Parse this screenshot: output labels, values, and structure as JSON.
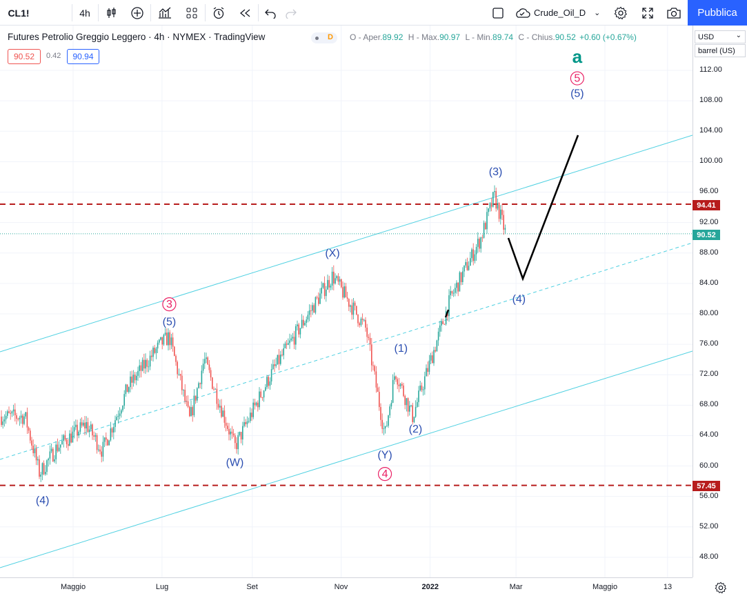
{
  "toolbar": {
    "symbol": "CL1!",
    "interval": "4h",
    "layout_name": "Crude_Oil_D",
    "publish_label": "Pubblica"
  },
  "legend": {
    "title": "Futures Petrolio Greggio Leggero · 4h · NYMEX · TradingView",
    "badge": "D",
    "open_label": "O - Aper.",
    "open": "89.92",
    "high_label": "H - Max.",
    "high": "90.97",
    "low_label": "L - Min.",
    "low": "89.74",
    "close_label": "C - Chius.",
    "close": "90.52",
    "change": "+0.60 (+0.67%)",
    "bid": "90.52",
    "spread": "0.42",
    "ask": "90.94"
  },
  "scale": {
    "currency": "USD",
    "unit": "barrel (US)",
    "ticks": [
      "112.00",
      "108.00",
      "104.00",
      "100.00",
      "96.00",
      "92.00",
      "88.00",
      "84.00",
      "80.00",
      "76.00",
      "72.00",
      "68.00",
      "64.00",
      "60.00",
      "56.00",
      "52.00",
      "48.00"
    ],
    "tag_resistance": "94.41",
    "tag_last": "90.52",
    "tag_support": "57.45"
  },
  "time_axis": {
    "ticks": [
      "Maggio",
      "Lug",
      "Set",
      "Nov",
      "2022",
      "Mar",
      "Maggio",
      "13"
    ]
  },
  "colors": {
    "up": "#26a69a",
    "down": "#ef5350",
    "channel": "#4dd0e1",
    "level": "#b71c1c",
    "wave_blue": "#2a4db0",
    "wave_pink": "#e91e63",
    "wave_green": "#009688"
  },
  "chart_data": {
    "type": "candlestick",
    "title": "Futures Petrolio Greggio Leggero · 4h · NYMEX",
    "ylim": [
      46,
      116
    ],
    "x_ticks": [
      "Maggio",
      "Lug",
      "Set",
      "Nov",
      "2022",
      "Mar",
      "Maggio",
      "13"
    ],
    "price_path": [
      {
        "date": "2021-03-29",
        "price": 66.5
      },
      {
        "date": "2021-04-08",
        "price": 59.0
      },
      {
        "date": "2021-04-20",
        "price": 62.5
      },
      {
        "date": "2021-05-10",
        "price": 65.5
      },
      {
        "date": "2021-05-21",
        "price": 62.0
      },
      {
        "date": "2021-06-08",
        "price": 70.5
      },
      {
        "date": "2021-06-30",
        "price": 76.0
      },
      {
        "date": "2021-07-06",
        "price": 77.0
      },
      {
        "date": "2021-07-20",
        "price": 66.0
      },
      {
        "date": "2021-07-30",
        "price": 74.0
      },
      {
        "date": "2021-08-20",
        "price": 62.5
      },
      {
        "date": "2021-09-15",
        "price": 72.5
      },
      {
        "date": "2021-10-26",
        "price": 85.0
      },
      {
        "date": "2021-11-18",
        "price": 78.0
      },
      {
        "date": "2021-12-01",
        "price": 64.0
      },
      {
        "date": "2021-12-08",
        "price": 72.5
      },
      {
        "date": "2021-12-20",
        "price": 66.5
      },
      {
        "date": "2022-01-15",
        "price": 82.0
      },
      {
        "date": "2022-02-05",
        "price": 90.0
      },
      {
        "date": "2022-02-14",
        "price": 95.5
      },
      {
        "date": "2022-02-22",
        "price": 90.5
      }
    ],
    "levels": [
      94.41,
      57.45
    ],
    "last_price": 90.52,
    "projection": [
      {
        "date": "2022-02-22",
        "price": 90.0
      },
      {
        "date": "2022-03-02",
        "price": 84.5
      },
      {
        "date": "2022-04-08",
        "price": 103.5
      }
    ],
    "wave_labels": [
      {
        "text": "(4)",
        "date": "2021-04-10",
        "price": 55.0,
        "color": "blue"
      },
      {
        "text": "3",
        "date": "2021-07-06",
        "price": 80.8,
        "color": "pink",
        "circled": true
      },
      {
        "text": "(5)",
        "date": "2021-07-06",
        "price": 78.5,
        "color": "blue"
      },
      {
        "text": "(W)",
        "date": "2021-08-20",
        "price": 60.0,
        "color": "blue"
      },
      {
        "text": "(X)",
        "date": "2021-10-26",
        "price": 87.5,
        "color": "blue"
      },
      {
        "text": "(1)",
        "date": "2021-12-12",
        "price": 75.0,
        "color": "blue"
      },
      {
        "text": "(2)",
        "date": "2021-12-22",
        "price": 64.4,
        "color": "blue"
      },
      {
        "text": "(Y)",
        "date": "2021-12-01",
        "price": 61.0,
        "color": "blue"
      },
      {
        "text": "4",
        "date": "2021-12-01",
        "price": 58.5,
        "color": "pink",
        "circled": true
      },
      {
        "text": "(3)",
        "date": "2022-02-15",
        "price": 98.2,
        "color": "blue"
      },
      {
        "text": "(4)",
        "date": "2022-03-03",
        "price": 81.5,
        "color": "blue"
      },
      {
        "text": "a",
        "date": "2022-04-12",
        "price": 113.0,
        "color": "green"
      },
      {
        "text": "5",
        "date": "2022-04-12",
        "price": 110.5,
        "color": "pink",
        "circled": true
      },
      {
        "text": "(5)",
        "date": "2022-04-12",
        "price": 108.5,
        "color": "blue"
      }
    ]
  }
}
